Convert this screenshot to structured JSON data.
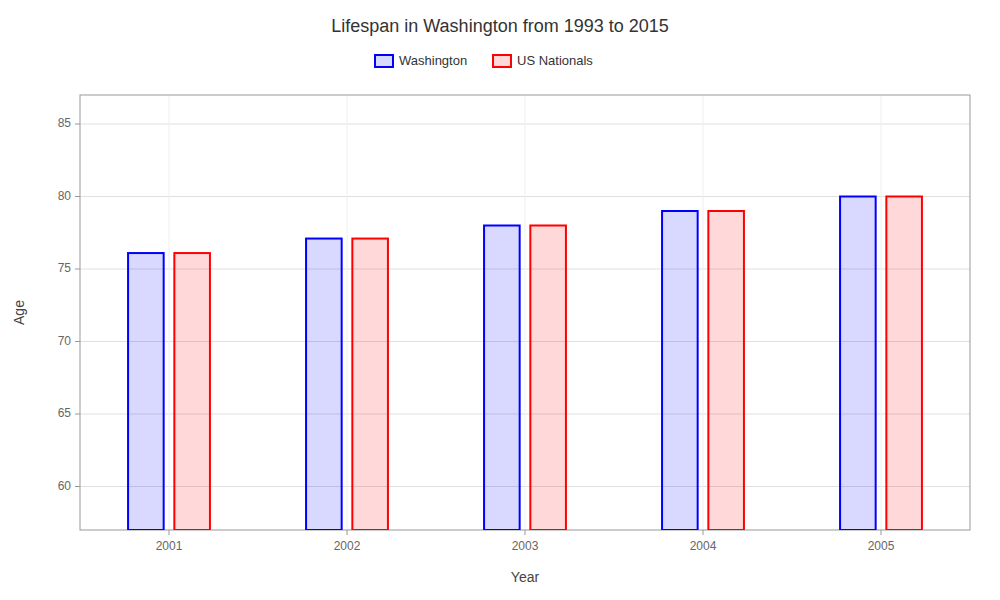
{
  "chart_data": {
    "type": "bar",
    "title": "Lifespan in Washington from 1993 to 2015",
    "x_label": "Year",
    "y_label": "Age",
    "categories": [
      "2001",
      "2002",
      "2003",
      "2004",
      "2005"
    ],
    "series": [
      {
        "name": "Washington",
        "color": "#0000ff",
        "values": [
          76.1,
          77.1,
          78.0,
          79.0,
          80.0
        ]
      },
      {
        "name": "US Nationals",
        "color": "#ff0000",
        "values": [
          76.1,
          77.1,
          78.0,
          79.0,
          80.0
        ]
      }
    ],
    "ylim": [
      57,
      87
    ],
    "yticks": [
      60,
      65,
      70,
      75,
      80,
      85
    ],
    "grid": true,
    "legend": "top"
  }
}
